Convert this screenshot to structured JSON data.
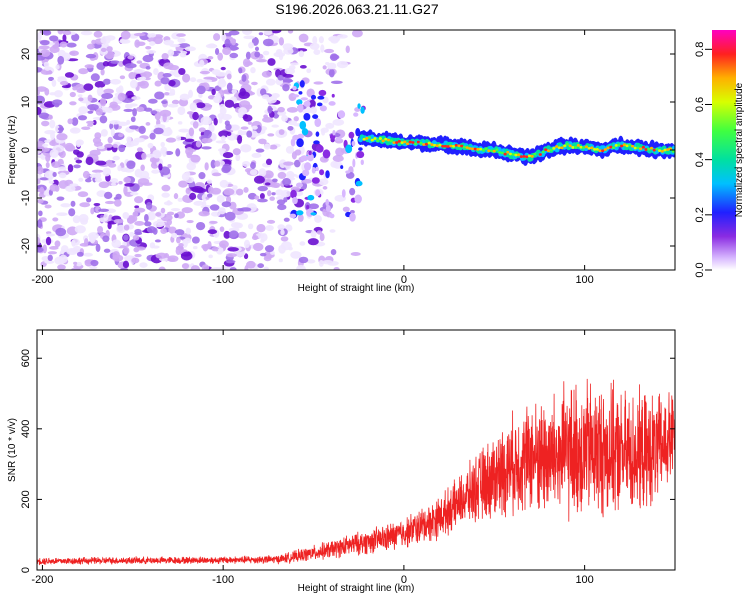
{
  "title": "S196.2026.063.21.11.G27",
  "colors": {
    "snr_line": "#ee2222",
    "spec_low": "#c9a6f2",
    "spec_mid": "#6a00d8"
  },
  "chart_data": [
    {
      "type": "heatmap",
      "name": "spectrogram",
      "xlabel": "Height of straight line (km)",
      "ylabel": "Frequency (Hz)",
      "xlim": [
        -203,
        150
      ],
      "ylim": [
        -25,
        25
      ],
      "xticks": [
        -200,
        -100,
        0,
        100
      ],
      "xtick_labels": [
        "-200",
        "-100",
        "0",
        "100"
      ],
      "yticks": [
        -20,
        -10,
        0,
        10,
        20
      ],
      "ytick_labels": [
        "-20",
        "-10",
        "0",
        "10",
        "20"
      ],
      "colorbar": {
        "label": "Normalized spectral amplitude",
        "range": [
          0,
          0.87
        ],
        "ticks": [
          0.0,
          0.2,
          0.4,
          0.6,
          0.8
        ],
        "tick_labels": [
          "0.0",
          "0.2",
          "0.4",
          "0.6",
          "0.8"
        ]
      },
      "noise_region_x": [
        -203,
        -25
      ],
      "signal_track": {
        "x": [
          -22,
          -10,
          0,
          10,
          20,
          30,
          40,
          50,
          60,
          70,
          80,
          90,
          100,
          110,
          120,
          130,
          140,
          150
        ],
        "freq": [
          2.5,
          2,
          1.5,
          1.5,
          1,
          1,
          0,
          0,
          -1,
          -1.5,
          0,
          1,
          0.5,
          0,
          1,
          0.5,
          0,
          0
        ]
      }
    },
    {
      "type": "line",
      "name": "snr",
      "xlabel": "Height of straight line (km)",
      "ylabel": "SNR (10 * v/v)",
      "xlim": [
        -203,
        150
      ],
      "ylim": [
        0,
        680
      ],
      "xticks": [
        -200,
        -100,
        0,
        100
      ],
      "xtick_labels": [
        "-200",
        "-100",
        "0",
        "100"
      ],
      "yticks": [
        0,
        200,
        400,
        600
      ],
      "ytick_labels": [
        "0",
        "200",
        "400",
        "600"
      ],
      "series": [
        {
          "name": "SNR",
          "x": [
            -203,
            -150,
            -100,
            -70,
            -60,
            -50,
            -40,
            -30,
            -20,
            -10,
            0,
            10,
            20,
            30,
            40,
            50,
            60,
            70,
            80,
            90,
            100,
            110,
            120,
            130,
            140,
            150
          ],
          "mean": [
            25,
            27,
            28,
            30,
            38,
            48,
            58,
            70,
            80,
            90,
            105,
            125,
            150,
            190,
            230,
            265,
            300,
            320,
            320,
            330,
            340,
            340,
            330,
            330,
            340,
            380
          ],
          "spread": [
            12,
            12,
            12,
            14,
            20,
            25,
            30,
            35,
            40,
            45,
            50,
            60,
            70,
            80,
            110,
            140,
            160,
            180,
            200,
            220,
            230,
            220,
            200,
            200,
            180,
            150
          ]
        }
      ]
    }
  ]
}
